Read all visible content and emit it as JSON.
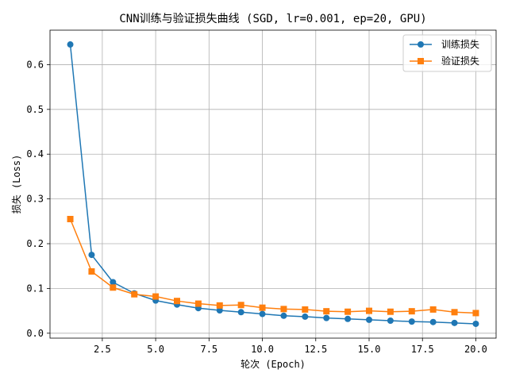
{
  "chart_data": {
    "type": "line",
    "title": "CNN训练与验证损失曲线 (SGD, lr=0.001, ep=20, GPU)",
    "xlabel": "轮次 (Epoch)",
    "ylabel": "损失 (Loss)",
    "xlim": [
      0.05,
      20.95
    ],
    "ylim": [
      -0.011,
      0.677
    ],
    "xticks": [
      2.5,
      5.0,
      7.5,
      10.0,
      12.5,
      15.0,
      17.5,
      20.0
    ],
    "xtick_labels": [
      "2.5",
      "5.0",
      "7.5",
      "10.0",
      "12.5",
      "15.0",
      "17.5",
      "20.0"
    ],
    "yticks": [
      0.0,
      0.1,
      0.2,
      0.3,
      0.4,
      0.5,
      0.6
    ],
    "ytick_labels": [
      "0.0",
      "0.1",
      "0.2",
      "0.3",
      "0.4",
      "0.5",
      "0.6"
    ],
    "grid": true,
    "legend_position": "top-right",
    "x": [
      1,
      2,
      3,
      4,
      5,
      6,
      7,
      8,
      9,
      10,
      11,
      12,
      13,
      14,
      15,
      16,
      17,
      18,
      19,
      20
    ],
    "series": [
      {
        "name": "训练损失",
        "color": "#1f77b4",
        "marker": "circle",
        "values": [
          0.645,
          0.175,
          0.114,
          0.089,
          0.073,
          0.064,
          0.056,
          0.051,
          0.047,
          0.043,
          0.039,
          0.037,
          0.034,
          0.032,
          0.03,
          0.028,
          0.026,
          0.025,
          0.023,
          0.021
        ]
      },
      {
        "name": "验证损失",
        "color": "#ff7f0e",
        "marker": "square",
        "values": [
          0.255,
          0.138,
          0.102,
          0.087,
          0.082,
          0.072,
          0.066,
          0.062,
          0.063,
          0.057,
          0.054,
          0.053,
          0.049,
          0.048,
          0.05,
          0.048,
          0.049,
          0.053,
          0.047,
          0.045
        ]
      }
    ]
  }
}
